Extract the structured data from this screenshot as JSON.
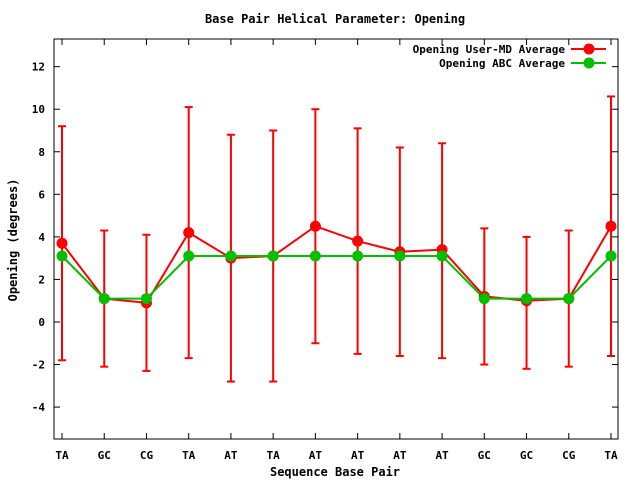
{
  "chart_data": {
    "type": "line",
    "title": "Base Pair Helical Parameter: Opening",
    "xlabel": "Sequence Base Pair",
    "ylabel": "Opening (degrees)",
    "categories": [
      "TA",
      "GC",
      "CG",
      "TA",
      "AT",
      "TA",
      "AT",
      "AT",
      "AT",
      "AT",
      "GC",
      "GC",
      "CG",
      "TA"
    ],
    "ylim": [
      -5.5,
      13.3
    ],
    "yticks": [
      -4,
      -2,
      0,
      2,
      4,
      6,
      8,
      10,
      12
    ],
    "grid": false,
    "legend_position": "top-right",
    "series": [
      {
        "name": "Opening User-MD Average",
        "color": "#ff0000",
        "values": [
          3.7,
          1.1,
          0.9,
          4.2,
          3.0,
          3.1,
          4.5,
          3.8,
          3.3,
          3.4,
          1.2,
          1.0,
          1.1,
          4.5
        ],
        "error_low": [
          -1.8,
          -2.1,
          -2.3,
          -1.7,
          -2.8,
          -2.8,
          -1.0,
          -1.5,
          -1.6,
          -1.7,
          -2.0,
          -2.2,
          -2.1,
          -1.6
        ],
        "error_high": [
          9.2,
          4.3,
          4.1,
          10.1,
          8.8,
          9.0,
          10.0,
          9.1,
          8.2,
          8.4,
          4.4,
          4.0,
          4.3,
          10.6
        ]
      },
      {
        "name": "Opening ABC Average",
        "color": "#00c000",
        "values": [
          3.1,
          1.1,
          1.1,
          3.1,
          3.1,
          3.1,
          3.1,
          3.1,
          3.1,
          3.1,
          1.1,
          1.1,
          1.1,
          3.1
        ]
      }
    ]
  }
}
